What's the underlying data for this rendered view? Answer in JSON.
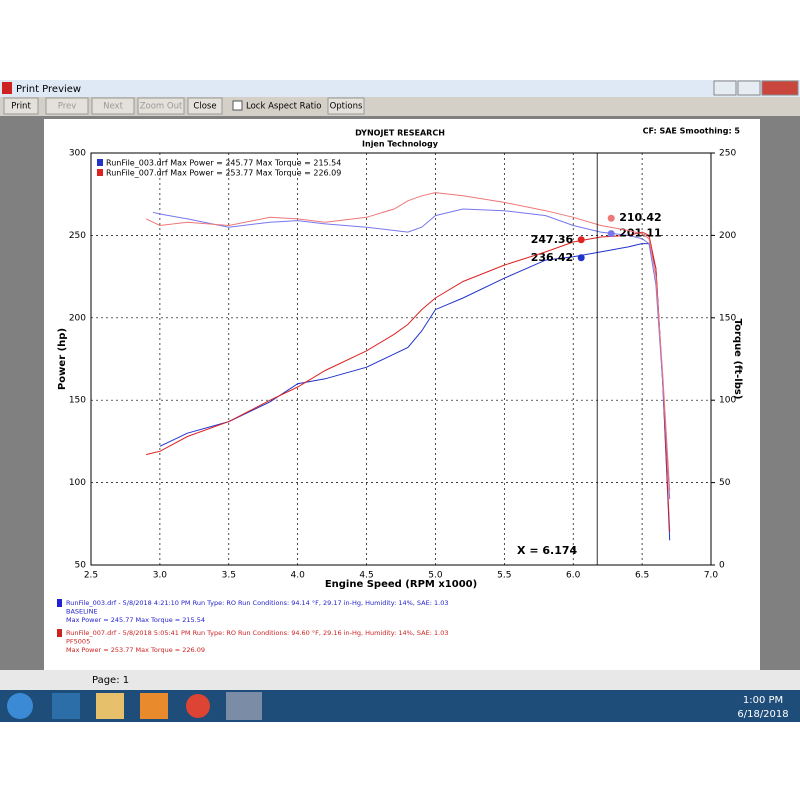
{
  "window": {
    "title": "Print Preview",
    "toolbar": [
      "Print",
      "Prev",
      "Next",
      "Zoom Out",
      "Close",
      "Lock Aspect Ratio",
      "Options"
    ],
    "status": "Page: 1"
  },
  "taskbar": {
    "time": "1:00 PM",
    "date": "6/18/2018"
  },
  "report": {
    "header": "DYNOJET RESEARCH",
    "subheader": "Injen Technology",
    "settings": "CF: SAE  Smoothing: 5",
    "legend": [
      "RunFile_003.drf Max Power = 245.77    Max Torque = 215.54",
      "RunFile_007.drf Max Power = 253.77    Max Torque = 226.09"
    ],
    "runs": [
      {
        "lines": [
          "RunFile_003.drf - 5/8/2018 4:21:10 PM  Run Type: RO  Run Conditions: 94.14 °F, 29.17 in-Hg,  Humidity:  14%, SAE: 1.03",
          "BASELINE",
          "Max Power = 245.77  Max Torque = 215.54"
        ],
        "color": "#2222cc"
      },
      {
        "lines": [
          "RunFile_007.drf - 5/8/2018 5:05:41 PM  Run Type: RO  Run Conditions: 94.60 °F, 29.16 in-Hg,  Humidity:  14%, SAE: 1.03",
          "PF5005",
          "Max Power = 253.77  Max Torque = 226.09"
        ],
        "color": "#cc2222"
      }
    ]
  },
  "chart_data": {
    "type": "line",
    "x_label": "Engine Speed (RPM x1000)",
    "y_label": "Power (hp)",
    "y2_label": "Torque (ft-lbs)",
    "x": [
      2.9,
      2.95,
      3.0,
      3.2,
      3.5,
      3.8,
      4.0,
      4.2,
      4.5,
      4.7,
      4.8,
      4.9,
      5.0,
      5.2,
      5.5,
      5.8,
      6.0,
      6.2,
      6.4,
      6.5,
      6.55,
      6.6,
      6.65,
      6.7
    ],
    "series": [
      {
        "color": "#2233cc",
        "values": [
          null,
          null,
          122,
          130,
          137,
          149,
          160,
          163,
          170,
          178,
          182,
          192,
          205,
          212,
          224,
          235,
          237,
          240,
          243,
          245,
          245,
          230,
          160,
          65
        ],
        "cursor_value": 236.42
      },
      {
        "color": "#dd2222",
        "values": [
          117,
          118,
          119,
          128,
          137,
          150,
          158,
          168,
          180,
          190,
          196,
          205,
          212,
          222,
          232,
          240,
          246,
          249,
          250,
          252,
          250,
          230,
          160,
          70
        ],
        "cursor_value": 247.36
      },
      {
        "color": "#7777ee",
        "axis": "y2",
        "values": [
          null,
          214,
          213,
          210,
          205,
          208,
          209,
          207,
          205,
          203,
          202,
          205,
          212,
          216,
          215,
          212,
          206,
          202,
          200,
          198,
          195,
          170,
          110,
          40
        ],
        "cursor_value": 201.11
      },
      {
        "color": "#ee7777",
        "axis": "y2",
        "values": [
          210,
          208,
          206,
          208,
          206,
          211,
          210,
          208,
          211,
          216,
          221,
          224,
          226,
          224,
          220,
          215,
          211,
          206,
          203,
          201,
          198,
          175,
          115,
          45
        ],
        "cursor_value": 210.42
      }
    ],
    "cursor": {
      "value": 6.174,
      "label": "X = 6.174"
    },
    "xlim": [
      2.5,
      7.0
    ],
    "xticks": [
      2.5,
      {
        "value": 3,
        "label": "3.0"
      },
      3.5,
      {
        "value": 4,
        "label": "4.0"
      },
      4.5,
      {
        "value": 5,
        "label": "5.0"
      },
      5.5,
      {
        "value": 6,
        "label": "6.0"
      },
      6.5,
      {
        "value": 7,
        "label": "7.0"
      }
    ],
    "ylim": [
      50,
      300
    ],
    "yticks": [
      50,
      100,
      150,
      200,
      250,
      300
    ],
    "y2lim": [
      0,
      250
    ],
    "y2ticks": [
      0,
      50,
      100,
      150,
      200,
      250
    ],
    "grid": true
  }
}
